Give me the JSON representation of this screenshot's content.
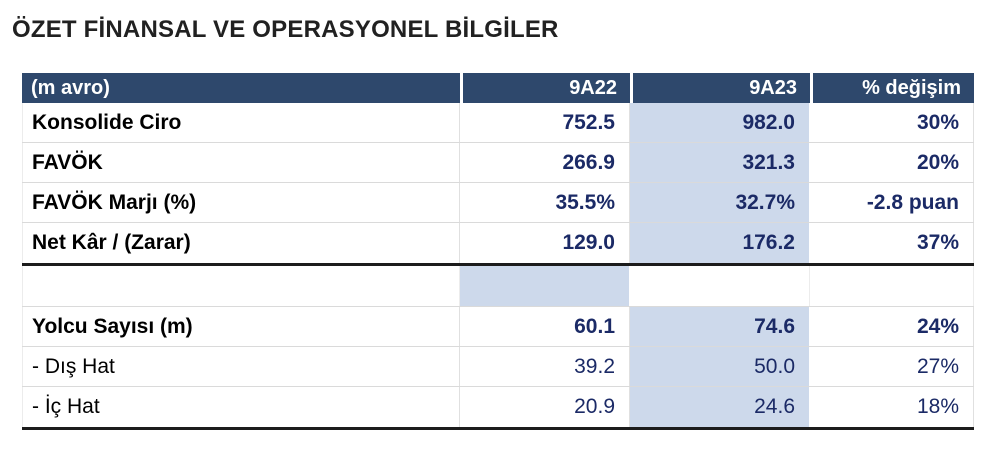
{
  "page": {
    "title": "ÖZET FİNANSAL VE OPERASYONEL BİLGİLER"
  },
  "table": {
    "headers": [
      "(m avro)",
      "9A22",
      "9A23",
      "% değişim"
    ],
    "rows": [
      {
        "label": "Konsolide Ciro",
        "values": [
          "752.5",
          "982.0",
          "30%"
        ]
      },
      {
        "label": "FAVÖK",
        "values": [
          "266.9",
          "321.3",
          "20%"
        ]
      },
      {
        "label": "FAVÖK Marjı (%)",
        "values": [
          "35.5%",
          "32.7%",
          "-2.8 puan"
        ]
      },
      {
        "label": "Net Kâr / (Zarar)",
        "values": [
          "129.0",
          "176.2",
          "37%"
        ]
      },
      {
        "label": "Yolcu Sayısı (m)",
        "values": [
          "60.1",
          "74.6",
          "24%"
        ]
      },
      {
        "label": "- Dış Hat",
        "values": [
          "39.2",
          "50.0",
          "27%"
        ]
      },
      {
        "label": "- İç Hat",
        "values": [
          "20.9",
          "24.6",
          "18%"
        ]
      }
    ],
    "spacer_row": {
      "shaded_under": "9A22"
    },
    "colors": {
      "header_bg": "#2e486c",
      "header_text": "#ffffff",
      "value_text": "#1b2a66",
      "label_text": "#000000",
      "shaded_cell": "#cdd9eb",
      "gridline": "#dadada",
      "divider": "#1c1c1c",
      "title_text": "#212121"
    }
  }
}
